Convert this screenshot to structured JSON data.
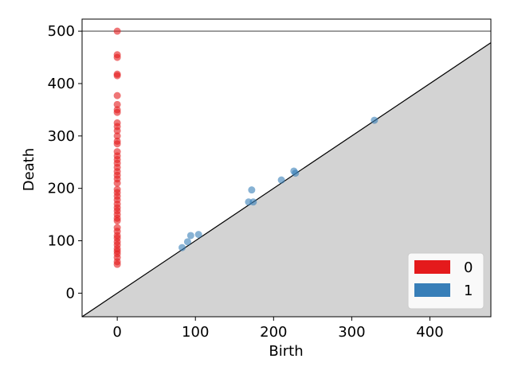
{
  "chart_data": {
    "type": "scatter",
    "title": "",
    "xlabel": "Birth",
    "ylabel": "Death",
    "xlim": [
      -45,
      478
    ],
    "ylim": [
      -45,
      523
    ],
    "xticks": [
      0,
      100,
      200,
      300,
      400
    ],
    "yticks": [
      0,
      100,
      200,
      300,
      400,
      500
    ],
    "infinity_line": 500,
    "diagonal": true,
    "grid": false,
    "legend_position": "bottom-right",
    "series": [
      {
        "name": "0",
        "color": "#e41a1c",
        "points": [
          [
            0,
            500
          ],
          [
            0,
            455
          ],
          [
            0,
            450
          ],
          [
            0,
            418
          ],
          [
            0,
            415
          ],
          [
            0,
            377
          ],
          [
            0,
            360
          ],
          [
            0,
            350
          ],
          [
            0,
            345
          ],
          [
            0,
            325
          ],
          [
            0,
            318
          ],
          [
            0,
            310
          ],
          [
            0,
            300
          ],
          [
            0,
            290
          ],
          [
            0,
            285
          ],
          [
            0,
            270
          ],
          [
            0,
            262
          ],
          [
            0,
            255
          ],
          [
            0,
            248
          ],
          [
            0,
            240
          ],
          [
            0,
            232
          ],
          [
            0,
            225
          ],
          [
            0,
            218
          ],
          [
            0,
            210
          ],
          [
            0,
            198
          ],
          [
            0,
            192
          ],
          [
            0,
            185
          ],
          [
            0,
            178
          ],
          [
            0,
            170
          ],
          [
            0,
            163
          ],
          [
            0,
            157
          ],
          [
            0,
            150
          ],
          [
            0,
            143
          ],
          [
            0,
            138
          ],
          [
            0,
            125
          ],
          [
            0,
            118
          ],
          [
            0,
            110
          ],
          [
            0,
            105
          ],
          [
            0,
            98
          ],
          [
            0,
            92
          ],
          [
            0,
            85
          ],
          [
            0,
            80
          ],
          [
            0,
            75
          ],
          [
            0,
            68
          ],
          [
            0,
            60
          ],
          [
            0,
            55
          ]
        ]
      },
      {
        "name": "1",
        "color": "#377eb8",
        "points": [
          [
            83,
            87
          ],
          [
            90,
            98
          ],
          [
            94,
            110
          ],
          [
            104,
            112
          ],
          [
            168,
            174
          ],
          [
            174,
            174
          ],
          [
            172,
            197
          ],
          [
            210,
            216
          ],
          [
            226,
            233
          ],
          [
            228,
            229
          ],
          [
            329,
            330
          ]
        ]
      }
    ]
  }
}
